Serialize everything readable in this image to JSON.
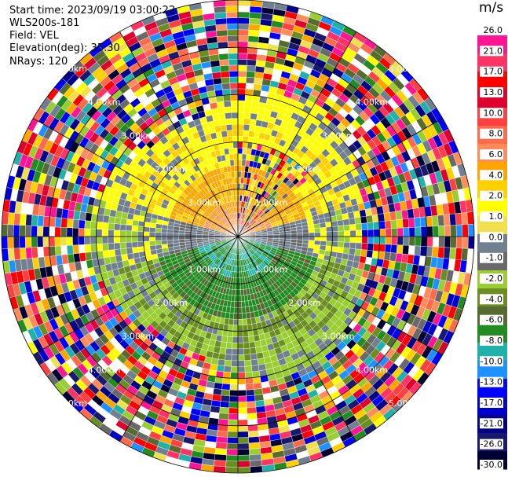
{
  "info": {
    "start_time": "Start time: 2023/09/19 03:00:22",
    "site": "WLS200s-181",
    "field": "Field: VEL",
    "elevation": "Elevation(deg): 35.30",
    "nrays": "NRays: 120"
  },
  "chart_data": {
    "type": "heatmap",
    "subtype": "radar-ppi",
    "field": "VEL",
    "units": "m/s",
    "n_rays": 120,
    "range_rings_km": [
      1.0,
      2.0,
      3.0,
      4.0,
      5.0
    ],
    "ring_labels": [
      "1.00km",
      "2.00km",
      "3.00km",
      "4.00km",
      "5.00km"
    ],
    "max_range_km": 5.0,
    "colorbar_ticks": [
      "26.0",
      "21.0",
      "17.0",
      "13.0",
      "10.0",
      "8.0",
      "6.0",
      "4.0",
      "2.0",
      "1.0",
      "0.0",
      "-1.0",
      "-2.0",
      "-4.0",
      "-6.0",
      "-8.0",
      "-10.0",
      "-13.0",
      "-17.0",
      "-21.0",
      "-26.0",
      "-30.0"
    ],
    "colorbar_colors": [
      "#ffffff",
      "#ff1493",
      "#ff3366",
      "#ff0000",
      "#e00030",
      "#ff4040",
      "#ff6a4a",
      "#ff8c5a",
      "#ffa500",
      "#ffd000",
      "#ffff00",
      "#f0e050",
      "#708090",
      "#696969",
      "#9acd32",
      "#6b8e23",
      "#556b2f",
      "#228b22",
      "#20b2aa",
      "#1e90ff",
      "#0000ff",
      "#0000cd",
      "#00008b",
      "#191970",
      "#000033"
    ],
    "pattern_description": "Receding (positive) velocities north, approaching (negative) south; noise beyond ~3 km"
  }
}
